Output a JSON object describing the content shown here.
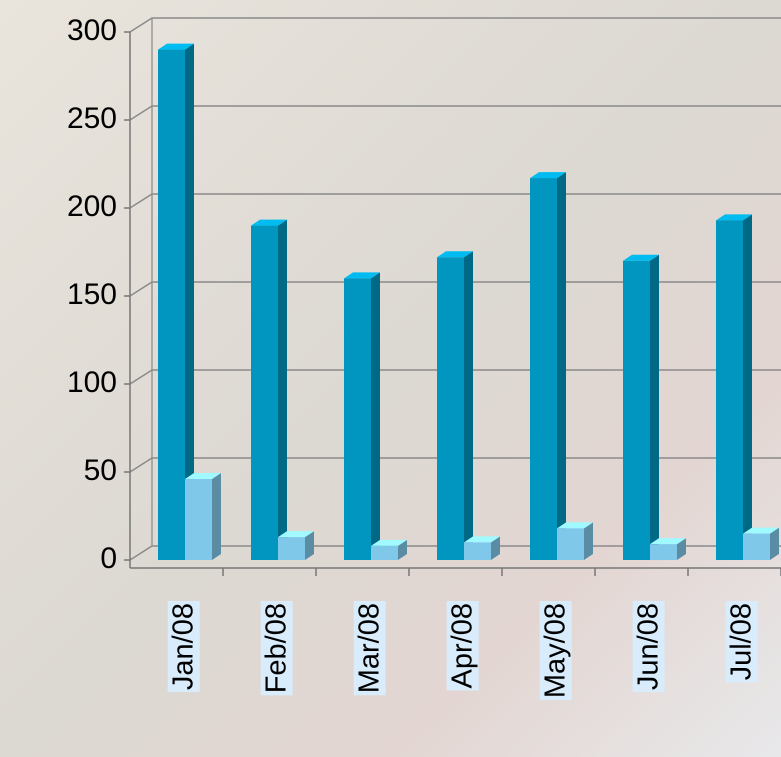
{
  "chart_data": {
    "type": "bar3d",
    "categories": [
      "Jan/08",
      "Feb/08",
      "Mar/08",
      "Apr/08",
      "May/08",
      "Jun/08",
      "Jul/08"
    ],
    "series": [
      {
        "color": "#0096c0",
        "values": [
          290,
          190,
          160,
          172,
          217,
          170,
          193
        ]
      },
      {
        "color": "#80c8ea",
        "values": [
          46,
          13,
          8,
          10,
          18,
          9,
          15
        ]
      }
    ],
    "ylim": [
      0,
      300
    ],
    "yticks": [
      0,
      50,
      100,
      150,
      200,
      250,
      300
    ],
    "grid": true
  }
}
